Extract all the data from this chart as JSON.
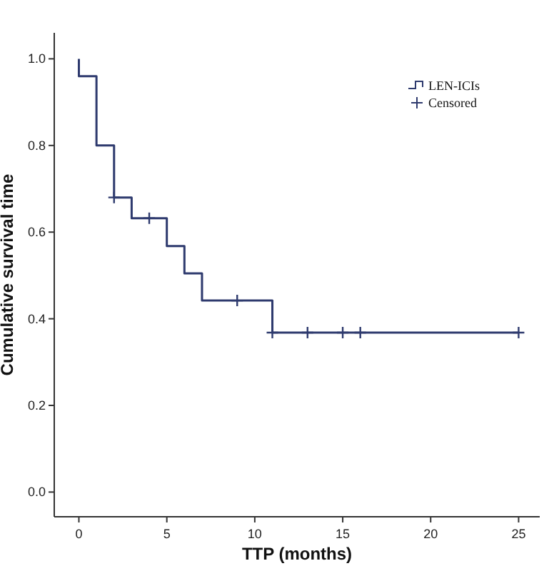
{
  "chart_data": {
    "type": "step",
    "xlabel": "TTP (months)",
    "ylabel": "Cumulative survival time",
    "xlim": [
      -1.4,
      26.2
    ],
    "ylim": [
      -0.057,
      1.06
    ],
    "xticks": [
      0,
      5,
      10,
      15,
      20,
      25
    ],
    "yticks": [
      {
        "value": 0,
        "label": "0.0"
      },
      {
        "value": 0.2,
        "label": "0.2"
      },
      {
        "value": 0.4,
        "label": "0.4"
      },
      {
        "value": 0.6,
        "label": "0.6"
      },
      {
        "value": 0.8,
        "label": "0.8"
      },
      {
        "value": 1,
        "label": "1.0"
      }
    ],
    "grid": false,
    "legend": "top right",
    "series": [
      {
        "name": "LEN-ICIs",
        "color": "#2e3a6e",
        "x": [
          0,
          0,
          1,
          2,
          3,
          5,
          6,
          7,
          11,
          25
        ],
        "values": [
          1,
          0.96,
          0.8,
          0.68,
          0.632,
          0.568,
          0.505,
          0.442,
          0.368,
          0.368
        ]
      },
      {
        "name": "Censored",
        "type": "scatter",
        "marker": "cross",
        "color": "#2e3a6e",
        "x": [
          2,
          4,
          9,
          11,
          13,
          15,
          16,
          25
        ],
        "values": [
          0.68,
          0.632,
          0.442,
          0.368,
          0.368,
          0.368,
          0.368,
          0.368
        ]
      }
    ]
  }
}
